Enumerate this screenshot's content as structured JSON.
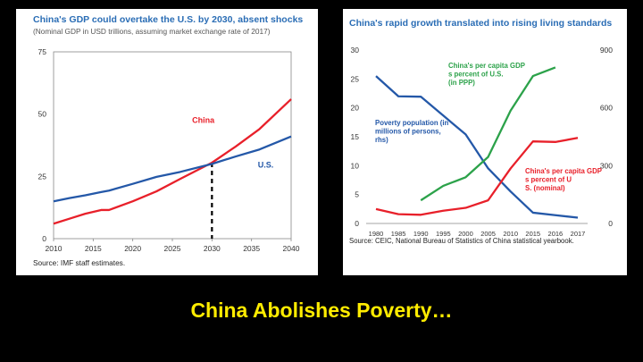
{
  "caption": "China Abolishes Poverty…",
  "chart_data": [
    {
      "type": "line",
      "title": "China's GDP could overtake the U.S. by 2030, absent shocks",
      "subtitle": "(Nominal GDP in USD trillions, assuming market exchange rate of 2017)",
      "source": "Source: IMF staff estimates.",
      "xlim": [
        2010,
        2040
      ],
      "ylim": [
        0,
        75
      ],
      "xticks": [
        "2010",
        "2015",
        "2020",
        "2025",
        "2030",
        "2035",
        "2040"
      ],
      "yticks": [
        "0",
        "25",
        "50",
        "75"
      ],
      "x": [
        2010,
        2012,
        2014,
        2016,
        2017,
        2020,
        2023,
        2026,
        2030,
        2033,
        2036,
        2040
      ],
      "series": [
        {
          "name": "China",
          "color": "#e8202a",
          "values": [
            6,
            8,
            10,
            11.5,
            11.5,
            15,
            19,
            24,
            30.5,
            37,
            44,
            56
          ]
        },
        {
          "name": "U.S.",
          "color": "#2458a8",
          "values": [
            15,
            16.3,
            17.4,
            18.7,
            19.3,
            22,
            24.8,
            26.8,
            30,
            33,
            35.8,
            41
          ]
        }
      ],
      "annotation": {
        "x": 2030,
        "style": "dashed",
        "color": "#000000"
      }
    },
    {
      "type": "line",
      "title": "China's rapid growth translated into rising living standards",
      "source": "Source: CEIC, National Bureau of Statistics of China statistical yearbook.",
      "x_categories": [
        "1980",
        "1985",
        "1990",
        "1995",
        "2000",
        "2005",
        "2010",
        "2015",
        "2016",
        "2017"
      ],
      "ylim_left": [
        0,
        30
      ],
      "ylim_right": [
        0,
        900
      ],
      "yticks_left": [
        "0",
        "5",
        "10",
        "15",
        "20",
        "25",
        "30"
      ],
      "yticks_right": [
        "0",
        "300",
        "600",
        "900"
      ],
      "series": [
        {
          "name": "Poverty population (in millions of persons, rhs)",
          "axis": "right",
          "color": "#2458a8",
          "values": [
            765,
            660,
            658,
            560,
            462,
            286,
            166,
            56,
            43,
            30
          ]
        },
        {
          "name": "China's per capita GDP as percent of U.S. (in PPP)",
          "axis": "left",
          "color": "#2ca24a",
          "values": [
            null,
            null,
            4,
            6.5,
            8,
            11.5,
            19.5,
            25.5,
            27,
            null
          ]
        },
        {
          "name": "China's per capita GDP as percent of U.S. (nominal)",
          "axis": "left",
          "color": "#e8202a",
          "values": [
            2.5,
            1.6,
            1.5,
            2.2,
            2.7,
            4,
            9.5,
            14.2,
            14.1,
            14.8
          ]
        }
      ]
    }
  ]
}
